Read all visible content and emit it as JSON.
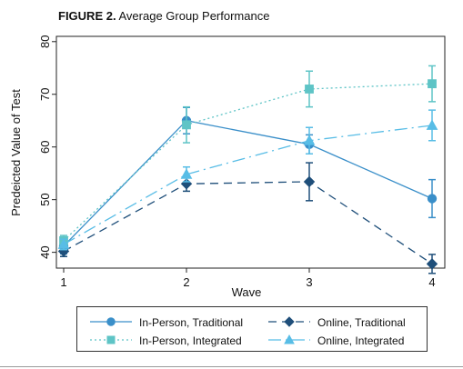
{
  "figure": {
    "label": "FIGURE 2.",
    "title": "Average Group Performance"
  },
  "chart_data": {
    "type": "line",
    "title": "Average Group Performance",
    "xlabel": "Wave",
    "ylabel": "Predeicted Value of Test",
    "x": [
      1,
      2,
      3,
      4
    ],
    "xticks": [
      "1",
      "2",
      "3",
      "4"
    ],
    "xlim": [
      1,
      4
    ],
    "ylim": [
      37,
      81
    ],
    "yticks": [
      40,
      50,
      60,
      70,
      80
    ],
    "grid": false,
    "legend_position": "bottom",
    "series": [
      {
        "name": "In-Person, Traditional",
        "values": [
          41.2,
          65.0,
          60.5,
          50.2
        ],
        "errors": [
          1.5,
          2.5,
          1.8,
          3.6
        ],
        "color": "#3a8fc9",
        "dash": "solid",
        "marker": "circle"
      },
      {
        "name": "Online, Traditional",
        "values": [
          40.2,
          53.0,
          53.4,
          37.8
        ],
        "errors": [
          1.0,
          1.4,
          3.6,
          1.8
        ],
        "color": "#1f4f7a",
        "dash": "dashed",
        "marker": "diamond"
      },
      {
        "name": "In-Person, Integrated",
        "values": [
          42.2,
          64.2,
          71.0,
          72.0
        ],
        "errors": [
          1.0,
          3.4,
          3.4,
          3.4
        ],
        "color": "#5ec4c6",
        "dash": "dotted",
        "marker": "square"
      },
      {
        "name": "Online, Integrated",
        "values": [
          41.5,
          54.8,
          61.2,
          64.1
        ],
        "errors": [
          1.0,
          1.4,
          2.5,
          2.9
        ],
        "color": "#58bde6",
        "dash": "longdash",
        "marker": "triangle"
      }
    ]
  }
}
